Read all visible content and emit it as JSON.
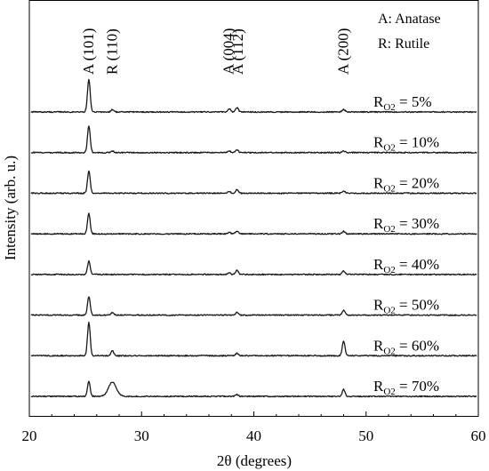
{
  "chart_data": {
    "type": "line",
    "title": "",
    "xlabel": "2θ (degrees)",
    "ylabel": "Intensity (arb. u.)",
    "xlim": [
      20,
      60
    ],
    "xticks": [
      20,
      30,
      40,
      50,
      60
    ],
    "y_tick_labels_shown": false,
    "grid": false,
    "stacked_offset_traces": true,
    "legend_lines": [
      "A: Anatase",
      "R: Rutile"
    ],
    "peak_annotations": [
      {
        "label": "A (101)",
        "x": 25.3
      },
      {
        "label": "R (110)",
        "x": 27.4
      },
      {
        "label": "A (004)",
        "x": 37.8
      },
      {
        "label": "A (112)",
        "x": 38.6
      },
      {
        "label": "A (200)",
        "x": 48.0
      }
    ],
    "series_label_prefix": "R",
    "series_label_subscript": "O2",
    "series": [
      {
        "name": "5%",
        "peaks": [
          [
            25.3,
            37
          ],
          [
            27.4,
            3
          ],
          [
            37.8,
            4
          ],
          [
            38.5,
            5
          ],
          [
            48.0,
            3
          ]
        ]
      },
      {
        "name": "10%",
        "peaks": [
          [
            25.3,
            30
          ],
          [
            27.4,
            2
          ],
          [
            37.8,
            2
          ],
          [
            38.5,
            3
          ],
          [
            48.0,
            2
          ]
        ]
      },
      {
        "name": "20%",
        "peaks": [
          [
            25.3,
            25
          ],
          [
            37.8,
            2
          ],
          [
            38.5,
            4
          ],
          [
            48.0,
            3
          ]
        ]
      },
      {
        "name": "30%",
        "peaks": [
          [
            25.3,
            23
          ],
          [
            37.8,
            2
          ],
          [
            38.5,
            3
          ],
          [
            48.0,
            3
          ]
        ]
      },
      {
        "name": "40%",
        "peaks": [
          [
            25.3,
            15
          ],
          [
            37.8,
            2
          ],
          [
            38.5,
            5
          ],
          [
            48.0,
            4
          ]
        ]
      },
      {
        "name": "50%",
        "peaks": [
          [
            25.3,
            21
          ],
          [
            27.4,
            3
          ],
          [
            38.5,
            3
          ],
          [
            48.0,
            6
          ]
        ]
      },
      {
        "name": "60%",
        "peaks": [
          [
            25.3,
            38
          ],
          [
            27.4,
            6
          ],
          [
            38.5,
            3
          ],
          [
            48.0,
            17
          ]
        ]
      },
      {
        "name": "70%",
        "peaks": [
          [
            25.3,
            17
          ],
          [
            27.4,
            16
          ],
          [
            38.5,
            2
          ],
          [
            48.0,
            8
          ]
        ]
      }
    ]
  }
}
